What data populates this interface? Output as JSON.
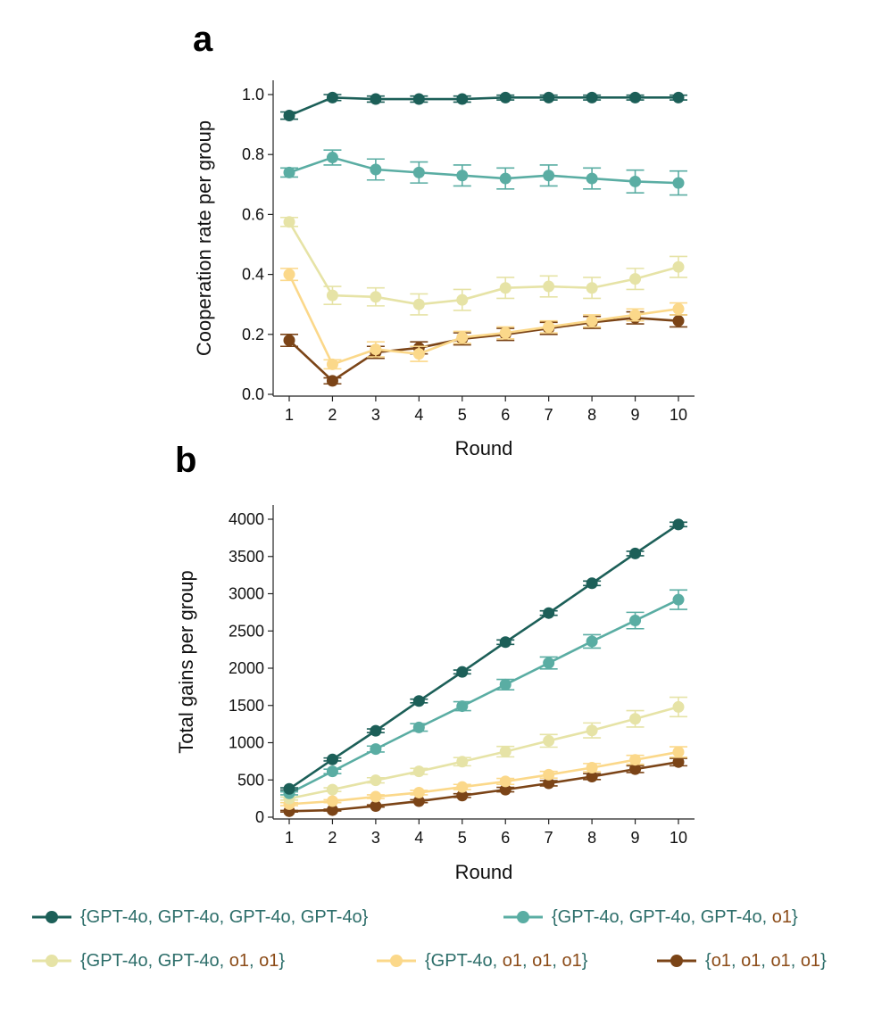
{
  "panels": [
    {
      "letter": "a",
      "xlabel": "Round",
      "ylabel": "Cooperation rate per group",
      "yticks": [
        "0.0",
        "0.2",
        "0.4",
        "0.6",
        "0.8",
        "1.0"
      ]
    },
    {
      "letter": "b",
      "xlabel": "Round",
      "ylabel": "Total gains per group",
      "yticks": [
        "0",
        "500",
        "1000",
        "1500",
        "2000",
        "2500",
        "3000",
        "3500",
        "4000"
      ]
    }
  ],
  "legend": [
    {
      "label": "{GPT-4o, GPT-4o, GPT-4o, GPT-4o}",
      "color": "#1c5f58"
    },
    {
      "label": "{GPT-4o, GPT-4o, GPT-4o, o1}",
      "color": "#5aada3"
    },
    {
      "label": "{GPT-4o, GPT-4o, o1, o1}",
      "color": "#e6e3a6"
    },
    {
      "label": "{GPT-4o, o1, o1, o1}",
      "color": "#fbd88a"
    },
    {
      "label": "{o1, o1, o1, o1}",
      "color": "#7b4417"
    }
  ],
  "chart_data": [
    {
      "type": "line",
      "title": "a",
      "xlabel": "Round",
      "ylabel": "Cooperation rate per group",
      "x": [
        1,
        2,
        3,
        4,
        5,
        6,
        7,
        8,
        9,
        10
      ],
      "ylim": [
        0,
        1.0
      ],
      "grid": false,
      "error_bars": true,
      "series": [
        {
          "name": "{GPT-4o, GPT-4o, GPT-4o, GPT-4o}",
          "color": "#1c5f58",
          "values": [
            0.93,
            0.99,
            0.985,
            0.985,
            0.985,
            0.99,
            0.99,
            0.99,
            0.99,
            0.99
          ],
          "errors": [
            0.012,
            0.01,
            0.01,
            0.01,
            0.01,
            0.008,
            0.008,
            0.008,
            0.008,
            0.008
          ]
        },
        {
          "name": "{GPT-4o, GPT-4o, GPT-4o, o1}",
          "color": "#5aada3",
          "values": [
            0.74,
            0.79,
            0.75,
            0.74,
            0.73,
            0.72,
            0.73,
            0.72,
            0.71,
            0.705
          ],
          "errors": [
            0.015,
            0.025,
            0.035,
            0.035,
            0.035,
            0.035,
            0.035,
            0.035,
            0.038,
            0.04
          ]
        },
        {
          "name": "{GPT-4o, GPT-4o, o1, o1}",
          "color": "#e6e3a6",
          "values": [
            0.575,
            0.33,
            0.325,
            0.3,
            0.315,
            0.355,
            0.36,
            0.355,
            0.385,
            0.425
          ],
          "errors": [
            0.015,
            0.03,
            0.03,
            0.035,
            0.035,
            0.035,
            0.035,
            0.035,
            0.035,
            0.035
          ]
        },
        {
          "name": "{GPT-4o, o1, o1, o1}",
          "color": "#fbd88a",
          "values": [
            0.4,
            0.1,
            0.15,
            0.135,
            0.19,
            0.205,
            0.225,
            0.245,
            0.265,
            0.285
          ],
          "errors": [
            0.02,
            0.015,
            0.025,
            0.025,
            0.02,
            0.02,
            0.02,
            0.02,
            0.02,
            0.02
          ]
        },
        {
          "name": "{o1, o1, o1, o1}",
          "color": "#7b4417",
          "values": [
            0.18,
            0.045,
            0.14,
            0.155,
            0.185,
            0.2,
            0.22,
            0.24,
            0.255,
            0.245
          ],
          "errors": [
            0.02,
            0.01,
            0.02,
            0.02,
            0.02,
            0.02,
            0.02,
            0.02,
            0.02,
            0.02
          ]
        }
      ]
    },
    {
      "type": "line",
      "title": "b",
      "xlabel": "Round",
      "ylabel": "Total gains per group",
      "x": [
        1,
        2,
        3,
        4,
        5,
        6,
        7,
        8,
        9,
        10
      ],
      "ylim": [
        0,
        4000
      ],
      "grid": false,
      "error_bars": true,
      "series": [
        {
          "name": "{GPT-4o, GPT-4o, GPT-4o, GPT-4o}",
          "color": "#1c5f58",
          "values": [
            380,
            775,
            1160,
            1560,
            1950,
            2350,
            2740,
            3140,
            3540,
            3930
          ],
          "errors": [
            15,
            20,
            25,
            25,
            25,
            30,
            30,
            30,
            30,
            30
          ]
        },
        {
          "name": "{GPT-4o, GPT-4o, GPT-4o, o1}",
          "color": "#5aada3",
          "values": [
            320,
            615,
            915,
            1205,
            1490,
            1780,
            2070,
            2360,
            2640,
            2920
          ],
          "errors": [
            20,
            30,
            40,
            50,
            60,
            70,
            80,
            90,
            110,
            130
          ]
        },
        {
          "name": "{GPT-4o, GPT-4o, o1, o1}",
          "color": "#e6e3a6",
          "values": [
            250,
            370,
            495,
            615,
            745,
            880,
            1025,
            1165,
            1320,
            1480
          ],
          "errors": [
            20,
            25,
            35,
            40,
            55,
            70,
            85,
            100,
            110,
            130
          ]
        },
        {
          "name": "{GPT-4o, o1, o1, o1}",
          "color": "#fbd88a",
          "values": [
            175,
            215,
            275,
            330,
            405,
            480,
            570,
            665,
            770,
            875
          ],
          "errors": [
            20,
            20,
            25,
            30,
            35,
            40,
            45,
            55,
            60,
            70
          ]
        },
        {
          "name": "{o1, o1, o1, o1}",
          "color": "#7b4417",
          "values": [
            80,
            95,
            150,
            215,
            290,
            370,
            455,
            545,
            645,
            740
          ],
          "errors": [
            10,
            12,
            15,
            20,
            25,
            30,
            35,
            40,
            45,
            50
          ]
        }
      ]
    }
  ]
}
